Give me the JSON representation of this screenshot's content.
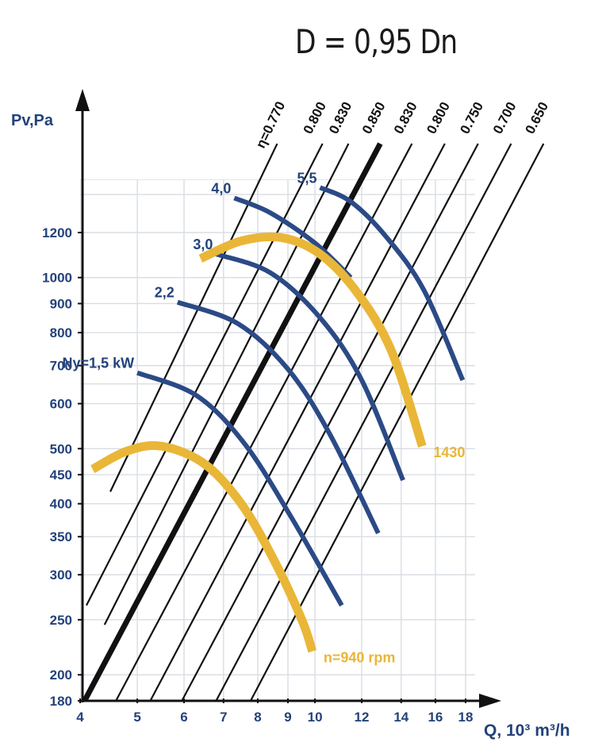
{
  "title": "D = 0,95 Dn",
  "chart_data": {
    "type": "line",
    "title": "D = 0,95 Dn",
    "xlabel": "Q, 10³ m³/h",
    "ylabel": "Pv,Pa",
    "x_scale": "log",
    "y_scale": "log",
    "xlim": [
      4,
      20.5
    ],
    "ylim": [
      180,
      1560
    ],
    "grid": true,
    "x_ticks": [
      4,
      5,
      6,
      7,
      8,
      9,
      10,
      12,
      14,
      16,
      18
    ],
    "x_tick_labels": [
      "4",
      "5",
      "6",
      "7",
      "8",
      "9",
      "10",
      "12",
      "14",
      "16",
      "18"
    ],
    "y_ticks": [
      180,
      200,
      250,
      300,
      350,
      400,
      450,
      500,
      600,
      700,
      800,
      900,
      1000,
      1200
    ],
    "y_tick_labels": [
      "180",
      "200",
      "250",
      "300",
      "350",
      "400",
      "450",
      "500",
      "600",
      "700",
      "800",
      "900",
      "1000",
      "1200"
    ],
    "x_gridlines": [
      4,
      5,
      6,
      7,
      8,
      9,
      10,
      12,
      14,
      16,
      18,
      20
    ],
    "y_gridlines": [
      180,
      200,
      250,
      300,
      350,
      400,
      450,
      500,
      600,
      650,
      700,
      800,
      900,
      1000,
      1200,
      1400
    ],
    "efficiency_lines": [
      {
        "label": "η=0.770",
        "x": [
          4.5,
          8.63
        ],
        "y": [
          420,
          1720
        ],
        "bold": false
      },
      {
        "label": "0.800",
        "x": [
          4.1,
          10.3
        ],
        "y": [
          265,
          1720
        ],
        "bold": false
      },
      {
        "label": "0.830",
        "x": [
          4.4,
          11.4
        ],
        "y": [
          245,
          1720
        ],
        "bold": false
      },
      {
        "label": "0.850",
        "x": [
          4.07,
          12.9
        ],
        "y": [
          180,
          1720
        ],
        "bold": true
      },
      {
        "label": "0.830",
        "x": [
          4.6,
          14.6
        ],
        "y": [
          180,
          1720
        ],
        "bold": false
      },
      {
        "label": "0.800",
        "x": [
          5.26,
          16.6
        ],
        "y": [
          180,
          1720
        ],
        "bold": false
      },
      {
        "label": "0.750",
        "x": [
          5.95,
          18.9
        ],
        "y": [
          180,
          1720
        ],
        "bold": false
      },
      {
        "label": "0.700",
        "x": [
          6.8,
          21.5
        ],
        "y": [
          180,
          1720
        ],
        "bold": false
      },
      {
        "label": "0.650",
        "x": [
          7.78,
          24.4
        ],
        "y": [
          180,
          1720
        ],
        "bold": false
      }
    ],
    "power_curves": [
      {
        "label": "Ny=1,5 kW",
        "x": [
          5.0,
          6.3,
          7.6,
          9.1,
          11.1
        ],
        "y": [
          680,
          620,
          510,
          380,
          265
        ]
      },
      {
        "label": "2,2",
        "x": [
          5.85,
          7.4,
          9.0,
          10.6,
          12.8
        ],
        "y": [
          905,
          830,
          690,
          530,
          355
        ]
      },
      {
        "label": "3,0",
        "x": [
          6.8,
          8.4,
          10.2,
          12.0,
          14.1
        ],
        "y": [
          1100,
          1020,
          850,
          660,
          440
        ]
      },
      {
        "label": "4,0",
        "x": [
          7.3,
          8.4,
          10.0,
          11.5
        ],
        "y": [
          1380,
          1300,
          1150,
          1000
        ]
      },
      {
        "label": "5,5",
        "x": [
          10.2,
          11.5,
          13.2,
          15.3,
          17.8
        ],
        "y": [
          1440,
          1360,
          1180,
          950,
          660
        ]
      }
    ],
    "speed_curves": [
      {
        "label": "n=940 rpm",
        "x": [
          4.2,
          4.8,
          5.5,
          6.5,
          7.5,
          8.5,
          9.5,
          9.9
        ],
        "y": [
          460,
          495,
          505,
          470,
          400,
          320,
          250,
          220
        ]
      },
      {
        "label": "1430",
        "x": [
          6.4,
          7.5,
          8.8,
          10.2,
          11.8,
          13.5,
          15.2
        ],
        "y": [
          1080,
          1160,
          1175,
          1100,
          940,
          740,
          505
        ]
      }
    ]
  }
}
